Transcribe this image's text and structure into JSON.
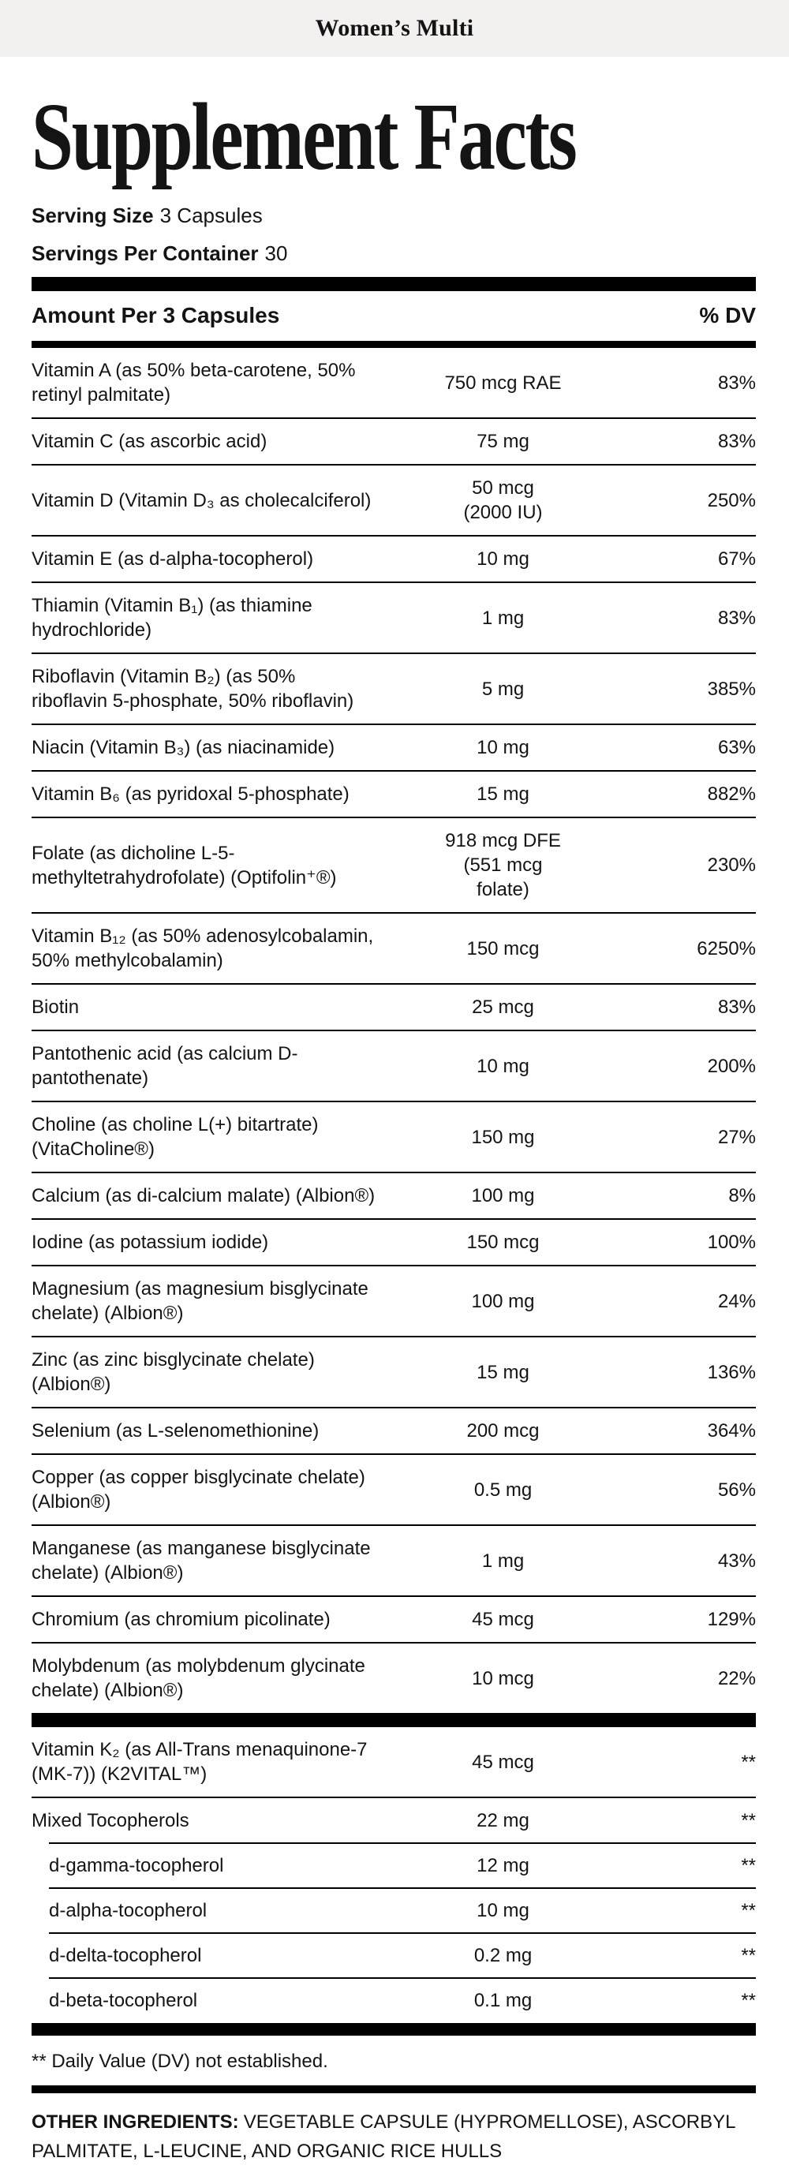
{
  "header": {
    "product_name": "Women’s Multi"
  },
  "title": "Supplement Facts",
  "serving": {
    "serving_size_label": "Serving Size",
    "serving_size_value": "3 Capsules",
    "servings_per_container_label": "Servings Per Container",
    "servings_per_container_value": "30"
  },
  "table": {
    "header": {
      "amount_label": "Amount Per 3 Capsules",
      "dv_label": "% DV"
    },
    "main_rows": [
      {
        "name": "Vitamin A (as 50% beta-carotene, 50%\nretinyl palmitate)",
        "amount": "750 mcg RAE",
        "dv": "83%",
        "indent": false
      },
      {
        "name": "Vitamin C (as ascorbic acid)",
        "amount": "75 mg",
        "dv": "83%",
        "indent": false
      },
      {
        "name": "Vitamin D (Vitamin D₃ as cholecalciferol)",
        "amount": "50 mcg\n(2000 IU)",
        "dv": "250%",
        "indent": false
      },
      {
        "name": "Vitamin E (as d-alpha-tocopherol)",
        "amount": "10 mg",
        "dv": "67%",
        "indent": false
      },
      {
        "name": "Thiamin (Vitamin B₁) (as thiamine\nhydrochloride)",
        "amount": "1 mg",
        "dv": "83%",
        "indent": false
      },
      {
        "name": "Riboflavin (Vitamin B₂) (as 50%\nriboflavin 5-phosphate, 50% riboflavin)",
        "amount": "5 mg",
        "dv": "385%",
        "indent": false
      },
      {
        "name": "Niacin (Vitamin B₃) (as niacinamide)",
        "amount": "10 mg",
        "dv": "63%",
        "indent": false
      },
      {
        "name": "Vitamin B₆ (as pyridoxal 5-phosphate)",
        "amount": "15 mg",
        "dv": "882%",
        "indent": false
      },
      {
        "name": "Folate (as dicholine L-5-\nmethyltetrahydrofolate) (Optifolin⁺®)",
        "amount": "918 mcg DFE\n(551 mcg\nfolate)",
        "dv": "230%",
        "indent": false
      },
      {
        "name": "Vitamin B₁₂ (as 50% adenosylcobalamin,\n50% methylcobalamin)",
        "amount": "150 mcg",
        "dv": "6250%",
        "indent": false
      },
      {
        "name": "Biotin",
        "amount": "25 mcg",
        "dv": "83%",
        "indent": false
      },
      {
        "name": "Pantothenic acid (as calcium D-\npantothenate)",
        "amount": "10 mg",
        "dv": "200%",
        "indent": false
      },
      {
        "name": "Choline (as choline L(+) bitartrate)\n(VitaCholine®)",
        "amount": "150 mg",
        "dv": "27%",
        "indent": false
      },
      {
        "name": "Calcium (as di-calcium malate) (Albion®)",
        "amount": "100 mg",
        "dv": "8%",
        "indent": false
      },
      {
        "name": "Iodine (as potassium iodide)",
        "amount": "150 mcg",
        "dv": "100%",
        "indent": false
      },
      {
        "name": "Magnesium (as magnesium bisglycinate\nchelate) (Albion®)",
        "amount": "100 mg",
        "dv": "24%",
        "indent": false
      },
      {
        "name": "Zinc (as zinc bisglycinate chelate) (Albion®)",
        "amount": "15 mg",
        "dv": "136%",
        "indent": false
      },
      {
        "name": "Selenium (as L-selenomethionine)",
        "amount": "200 mcg",
        "dv": "364%",
        "indent": false
      },
      {
        "name": "Copper (as copper bisglycinate chelate)\n(Albion®)",
        "amount": "0.5 mg",
        "dv": "56%",
        "indent": false
      },
      {
        "name": "Manganese (as manganese bisglycinate\nchelate) (Albion®)",
        "amount": "1 mg",
        "dv": "43%",
        "indent": false
      },
      {
        "name": "Chromium (as chromium picolinate)",
        "amount": "45 mcg",
        "dv": "129%",
        "indent": false
      },
      {
        "name": "Molybdenum (as molybdenum glycinate\nchelate) (Albion®)",
        "amount": "10 mcg",
        "dv": "22%",
        "indent": false
      }
    ],
    "secondary_rows": [
      {
        "name": "Vitamin K₂ (as All-Trans menaquinone-7\n(MK-7)) (K2VITAL™)",
        "amount": "45 mcg",
        "dv": "**",
        "indent": false
      },
      {
        "name": "Mixed Tocopherols",
        "amount": "22 mg",
        "dv": "**",
        "indent": false
      },
      {
        "name": "d-gamma-tocopherol",
        "amount": "12 mg",
        "dv": "**",
        "indent": true
      },
      {
        "name": "d-alpha-tocopherol",
        "amount": "10 mg",
        "dv": "**",
        "indent": true
      },
      {
        "name": "d-delta-tocopherol",
        "amount": "0.2 mg",
        "dv": "**",
        "indent": true
      },
      {
        "name": "d-beta-tocopherol",
        "amount": "0.1 mg",
        "dv": "**",
        "indent": true
      }
    ]
  },
  "footnote": "** Daily Value (DV) not established.",
  "other_ingredients": {
    "label": "OTHER INGREDIENTS:",
    "text": "VEGETABLE CAPSULE (HYPROMELLOSE), ASCORBYL PALMITATE, L-LEUCINE, AND ORGANIC RICE HULLS"
  },
  "colors": {
    "band_bg": "#f2f1ef",
    "bar": "#000000",
    "text": "#141414"
  }
}
